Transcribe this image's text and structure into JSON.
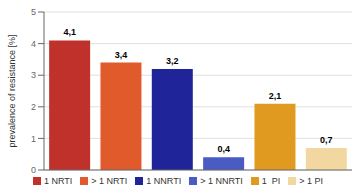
{
  "chart_data": {
    "type": "bar",
    "categories": [
      "1 NRTI",
      "> 1 NRTI",
      "1 NNRTI",
      "> 1 NNRTI",
      "1  PI",
      "> 1 PI"
    ],
    "values": [
      4.1,
      3.4,
      3.2,
      0.4,
      2.1,
      0.7
    ],
    "value_labels": [
      "4,1",
      "3,4",
      "3,2",
      "0,4",
      "2,1",
      "0,7"
    ],
    "colors": [
      "#c0312b",
      "#e05a2b",
      "#1f2499",
      "#4a5bc4",
      "#e09a20",
      "#f2d8a0"
    ],
    "ylabel": "prevalence of resistance [%]",
    "ylim": [
      0,
      5
    ],
    "yticks": [
      0,
      1,
      2,
      3,
      4,
      5
    ],
    "grid": true,
    "legend": "bottom",
    "data_labels": true,
    "tick_labels": "y"
  }
}
